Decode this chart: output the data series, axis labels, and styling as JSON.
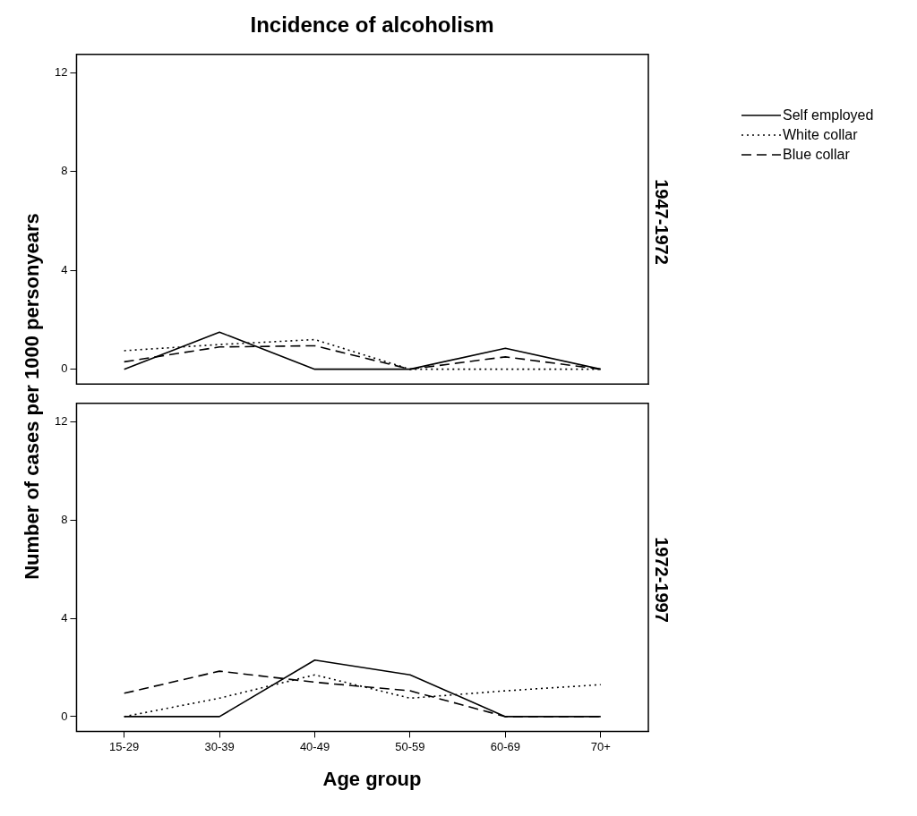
{
  "chart_data": [
    {
      "type": "line",
      "title": "Incidence of alcoholism",
      "ylabel": "Number of cases per 1000 personyears",
      "subtitle": "1947-1972",
      "categories": [
        null,
        null,
        null,
        null,
        null,
        null
      ],
      "series": [
        {
          "name": "Self employed",
          "color": "#000000",
          "line_style": "solid",
          "values": [
            0,
            1.5,
            0,
            0,
            0.85,
            0
          ]
        },
        {
          "name": "White collar",
          "color": "#000000",
          "line_style": "dotted",
          "values": [
            0.75,
            1.0,
            1.2,
            0,
            0,
            0
          ]
        },
        {
          "name": "Blue collar",
          "color": "#000000",
          "line_style": "dashed",
          "values": [
            0.3,
            0.9,
            0.95,
            0,
            0.5,
            0
          ]
        }
      ],
      "ylim": [
        -0.6,
        12.75
      ],
      "yticks": [
        0,
        4,
        8,
        12
      ],
      "grid": false,
      "legend": "top right",
      "marker": "none",
      "tick_labels": "y"
    },
    {
      "type": "line",
      "xlabel": "Age group",
      "subtitle": "1972-1997",
      "categories": [
        "15-29",
        "30-39",
        "40-49",
        "50-59",
        "60-69",
        "70+"
      ],
      "series": [
        {
          "color": "#000000",
          "line_style": "solid",
          "values": [
            0,
            0,
            2.3,
            1.7,
            0,
            0
          ]
        },
        {
          "color": "#000000",
          "line_style": "dotted",
          "values": [
            0,
            0.75,
            1.7,
            0.75,
            1.05,
            1.3
          ]
        },
        {
          "color": "#000000",
          "line_style": "dashed",
          "values": [
            0.95,
            1.85,
            1.4,
            1.05,
            0,
            0
          ]
        }
      ],
      "ylim": [
        -0.6,
        12.75
      ],
      "yticks": [
        0,
        4,
        8,
        12
      ],
      "grid": false,
      "marker": "none"
    }
  ]
}
